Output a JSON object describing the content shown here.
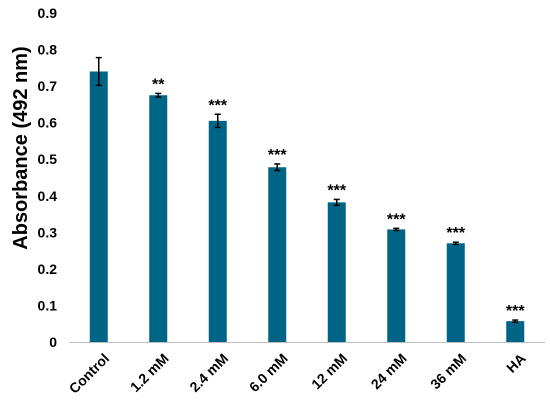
{
  "chart_data": {
    "type": "bar",
    "title": "",
    "xlabel": "",
    "ylabel": "Absorbance (492 nm)",
    "categories": [
      "Control",
      "1.2 mM",
      "2.4 mM",
      "6.0 mM",
      "12 mM",
      "24 mM",
      "36 mM",
      "HA"
    ],
    "values": [
      0.74,
      0.675,
      0.605,
      0.478,
      0.382,
      0.308,
      0.27,
      0.057
    ],
    "errors": [
      0.038,
      0.005,
      0.018,
      0.009,
      0.008,
      0.003,
      0.003,
      0.003
    ],
    "significance": [
      "",
      "**",
      "***",
      "***",
      "***",
      "***",
      "***",
      "***"
    ],
    "ylim": [
      0,
      0.9
    ],
    "yticks": [
      "0",
      "0.1",
      "0.2",
      "0.3",
      "0.4",
      "0.5",
      "0.6",
      "0.7",
      "0.8",
      "0.9"
    ],
    "grid": false,
    "legend": "none",
    "bar_color": "#006487",
    "axis_color": "#bfbfbf"
  }
}
